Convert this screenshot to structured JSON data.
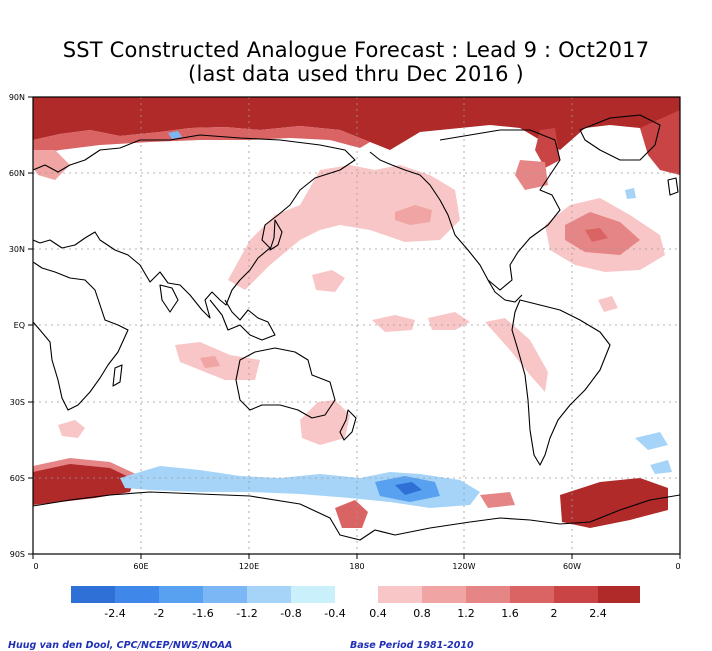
{
  "title": {
    "line1": "SST Constructed Analogue Forecast : Lead 9 : Oct2017",
    "line2": "(last data used thru Dec 2016 )"
  },
  "map": {
    "lat_labels": [
      "90N",
      "60N",
      "30N",
      "EQ",
      "30S",
      "60S",
      "90S"
    ],
    "lon_labels": [
      "0",
      "60E",
      "120E",
      "180",
      "120W",
      "60W",
      "0"
    ]
  },
  "legend": {
    "negative_colors": [
      "#2f70d6",
      "#3f87e8",
      "#58a0f0",
      "#7bb7f5",
      "#a5d4f8",
      "#caf1fb"
    ],
    "negative_labels": [
      "-2.4",
      "-2",
      "-1.6",
      "-1.2",
      "-0.8",
      "-0.4"
    ],
    "positive_colors": [
      "#f8c6c6",
      "#f1a4a4",
      "#e58585",
      "#da6363",
      "#c94545",
      "#b02a2a"
    ],
    "positive_labels": [
      "0.4",
      "0.8",
      "1.2",
      "1.6",
      "2",
      "2.4"
    ]
  },
  "credits": {
    "left": "Huug van den Dool, CPC/NCEP/NWS/NOAA",
    "right": "Base Period 1981-2010"
  },
  "colors": {
    "warm_light": "#f8c6c6",
    "warm_medium": "#f1a4a4",
    "warm_strong": "#da6363",
    "warm_extreme": "#b02a2a",
    "cool_light": "#a5d4f8",
    "cool_medium": "#58a0f0",
    "cool_strong": "#2f70d6"
  }
}
